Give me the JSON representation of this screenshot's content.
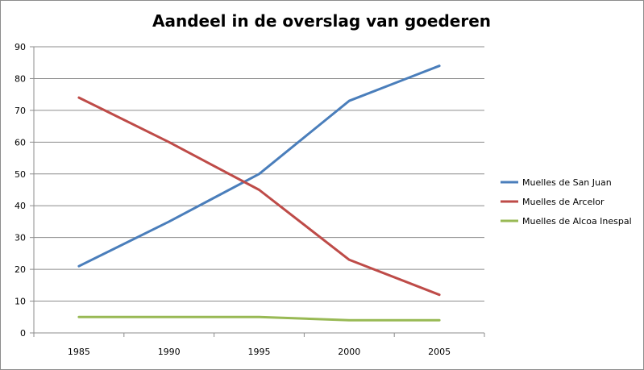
{
  "chart_data": {
    "type": "line",
    "title": "Aandeel in de overslag van goederen",
    "xlabel": "",
    "ylabel": "",
    "categories": [
      "1985",
      "1990",
      "1995",
      "2000",
      "2005"
    ],
    "ylim": [
      0,
      90
    ],
    "yticks": [
      0,
      10,
      20,
      30,
      40,
      50,
      60,
      70,
      80,
      90
    ],
    "grid": "horizontal",
    "legend_position": "right",
    "series": [
      {
        "name": "Muelles de San Juan",
        "color": "#4a7ebb",
        "values": [
          21,
          35,
          50,
          73,
          84
        ]
      },
      {
        "name": "Muelles de Arcelor",
        "color": "#be4b48",
        "values": [
          74,
          60,
          45,
          23,
          12
        ]
      },
      {
        "name": "Muelles de Alcoa Inespal",
        "color": "#98b954",
        "values": [
          5,
          5,
          5,
          4,
          4
        ]
      }
    ]
  }
}
